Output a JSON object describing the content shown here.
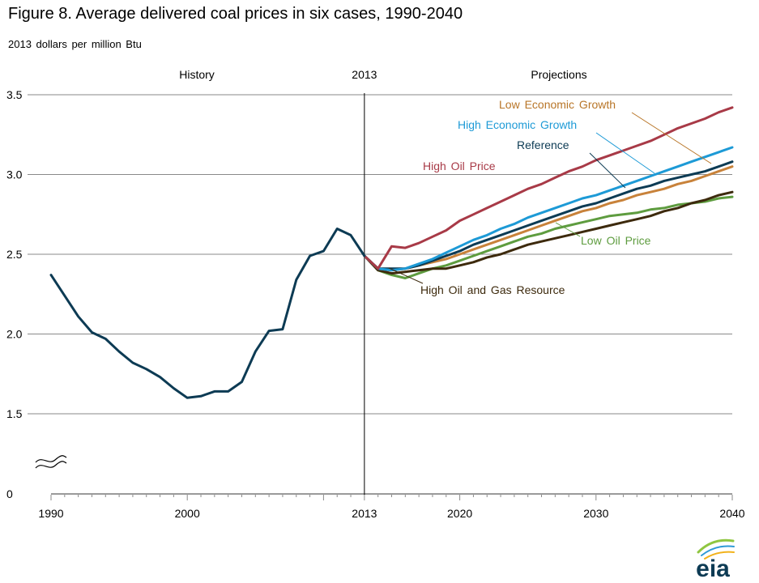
{
  "page": {
    "title": "Figure 8. Average delivered coal prices in six cases, 1990-2040",
    "subtitle": "2013 dollars  per million  Btu",
    "logo_text": "eia"
  },
  "chart_data": {
    "type": "line",
    "title": "Figure 8. Average delivered coal prices in six cases, 1990-2040",
    "ylabel": "2013 dollars  per million  Btu",
    "xlabel": "",
    "xlim": [
      1990,
      2040
    ],
    "ylim": [
      0,
      3.5
    ],
    "axis_break": "between 0 and 1.5",
    "grid": "horizontal",
    "x_ticks": [
      "1990",
      "2000",
      "2013",
      "2020",
      "2030",
      "2040"
    ],
    "y_ticks": [
      "0",
      "1.5",
      "2.0",
      "2.5",
      "3.0",
      "3.5"
    ],
    "period_labels": {
      "history": "History",
      "divider": "2013",
      "projections": "Projections"
    },
    "divider_year": 2013,
    "history": {
      "color": "#0d3b54",
      "x": [
        1990,
        1991,
        1992,
        1993,
        1994,
        1995,
        1996,
        1997,
        1998,
        1999,
        2000,
        2001,
        2002,
        2003,
        2004,
        2005,
        2006,
        2007,
        2008,
        2009,
        2010,
        2011,
        2012,
        2013
      ],
      "y": [
        2.37,
        2.24,
        2.11,
        2.01,
        1.97,
        1.89,
        1.82,
        1.78,
        1.73,
        1.66,
        1.6,
        1.61,
        1.64,
        1.64,
        1.7,
        1.89,
        2.02,
        2.03,
        2.34,
        2.49,
        2.52,
        2.66,
        2.62,
        2.49
      ]
    },
    "proj_x": [
      2013,
      2014,
      2015,
      2016,
      2017,
      2018,
      2019,
      2020,
      2021,
      2022,
      2023,
      2024,
      2025,
      2026,
      2027,
      2028,
      2029,
      2030,
      2031,
      2032,
      2033,
      2034,
      2035,
      2036,
      2037,
      2038,
      2039,
      2040
    ],
    "series": [
      {
        "name": "Low Economic Growth",
        "color": "#c8823a",
        "label_color": "#b87527",
        "values": [
          2.49,
          2.41,
          2.4,
          2.41,
          2.43,
          2.45,
          2.47,
          2.5,
          2.53,
          2.56,
          2.59,
          2.62,
          2.65,
          2.68,
          2.71,
          2.74,
          2.77,
          2.79,
          2.82,
          2.84,
          2.87,
          2.89,
          2.91,
          2.94,
          2.96,
          2.99,
          3.02,
          3.05
        ]
      },
      {
        "name": "High Economic Growth",
        "color": "#1d9ad6",
        "label_color": "#1d9ad6",
        "values": [
          2.49,
          2.41,
          2.4,
          2.41,
          2.44,
          2.47,
          2.51,
          2.55,
          2.59,
          2.62,
          2.66,
          2.69,
          2.73,
          2.76,
          2.79,
          2.82,
          2.85,
          2.87,
          2.9,
          2.93,
          2.96,
          2.99,
          3.02,
          3.05,
          3.08,
          3.11,
          3.14,
          3.17
        ]
      },
      {
        "name": "Reference",
        "color": "#0d3b54",
        "label_color": "#0d3b54",
        "values": [
          2.49,
          2.41,
          2.41,
          2.41,
          2.43,
          2.46,
          2.49,
          2.52,
          2.56,
          2.59,
          2.62,
          2.65,
          2.68,
          2.71,
          2.74,
          2.77,
          2.8,
          2.82,
          2.85,
          2.88,
          2.91,
          2.93,
          2.96,
          2.98,
          3.0,
          3.02,
          3.05,
          3.08
        ]
      },
      {
        "name": "High Oil Price",
        "color": "#a83a47",
        "label_color": "#a83a47",
        "values": [
          2.49,
          2.41,
          2.55,
          2.54,
          2.57,
          2.61,
          2.65,
          2.71,
          2.75,
          2.79,
          2.83,
          2.87,
          2.91,
          2.94,
          2.98,
          3.02,
          3.05,
          3.09,
          3.12,
          3.15,
          3.18,
          3.21,
          3.25,
          3.29,
          3.32,
          3.35,
          3.39,
          3.42
        ]
      },
      {
        "name": "Low Oil Price",
        "color": "#5e9c3f",
        "label_color": "#5e9c3f",
        "values": [
          2.49,
          2.4,
          2.37,
          2.35,
          2.38,
          2.41,
          2.43,
          2.46,
          2.49,
          2.52,
          2.55,
          2.58,
          2.61,
          2.63,
          2.66,
          2.68,
          2.7,
          2.72,
          2.74,
          2.75,
          2.76,
          2.78,
          2.79,
          2.81,
          2.82,
          2.83,
          2.85,
          2.86
        ]
      },
      {
        "name": "High Oil and Gas Resource",
        "color": "#3d2a0d",
        "label_color": "#3d2a0d",
        "values": [
          2.49,
          2.4,
          2.38,
          2.39,
          2.4,
          2.41,
          2.41,
          2.43,
          2.45,
          2.48,
          2.5,
          2.53,
          2.56,
          2.58,
          2.6,
          2.62,
          2.64,
          2.66,
          2.68,
          2.7,
          2.72,
          2.74,
          2.77,
          2.79,
          2.82,
          2.84,
          2.87,
          2.89
        ]
      }
    ]
  }
}
